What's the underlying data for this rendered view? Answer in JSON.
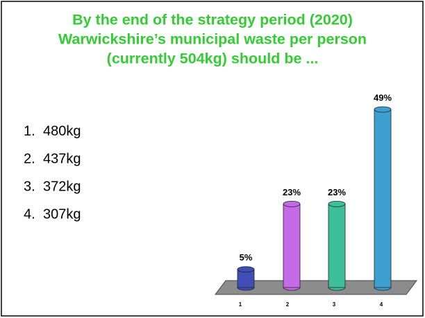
{
  "chart_data": {
    "type": "bar",
    "title": [
      "By the end of the strategy period (2020)",
      "Warwickshire’s municipal waste per person",
      "(currently 504kg) should be ..."
    ],
    "options": [
      {
        "number": "1.",
        "text": "480kg"
      },
      {
        "number": "2.",
        "text": "437kg"
      },
      {
        "number": "3.",
        "text": "372kg"
      },
      {
        "number": "4.",
        "text": "307kg"
      }
    ],
    "categories": [
      "1",
      "2",
      "3",
      "4"
    ],
    "values": [
      5,
      23,
      23,
      49
    ],
    "value_labels": [
      "5%",
      "23%",
      "23%",
      "49%"
    ],
    "colors": [
      "#3f4fb5",
      "#c46ae6",
      "#3dbf9a",
      "#3d9fd0"
    ]
  }
}
